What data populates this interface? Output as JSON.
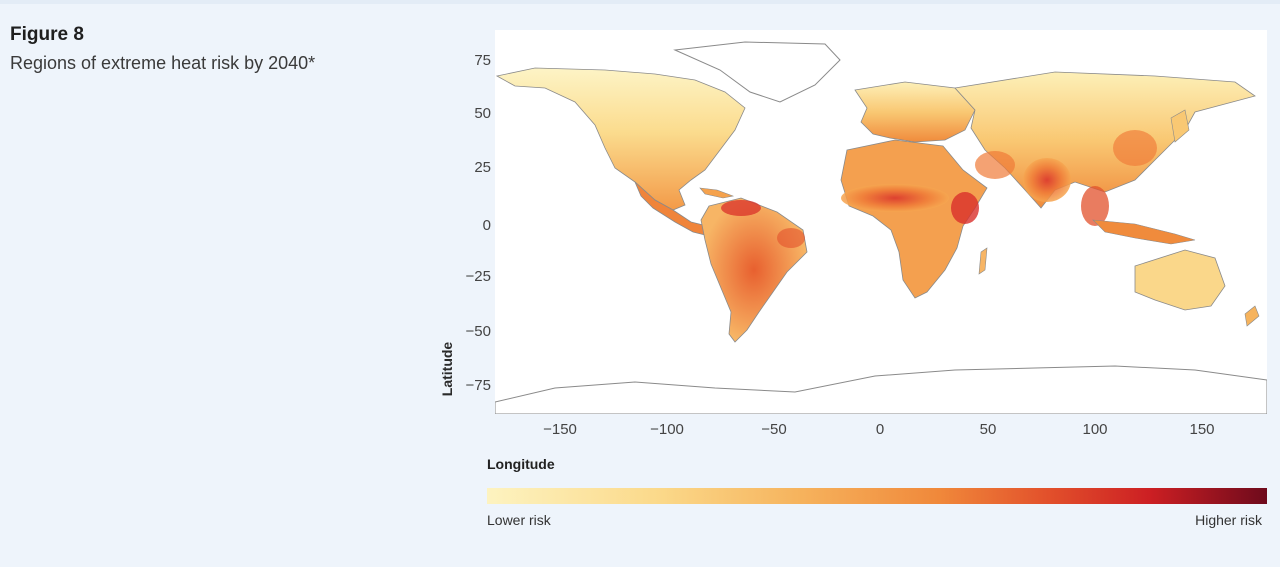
{
  "figure": {
    "label": "Figure 8",
    "subtitle": "Regions of extreme heat risk by 2040*"
  },
  "map": {
    "y_axis_label": "Latitude",
    "x_axis_label": "Longitude",
    "y_ticks": [
      "75",
      "50",
      "25",
      "0",
      "−25",
      "−50",
      "−75"
    ],
    "x_ticks": [
      "−150",
      "−100",
      "−50",
      "0",
      "50",
      "100",
      "150"
    ],
    "colors": {
      "low": "#fdf3c0",
      "mid": "#f0883a",
      "high": "#cc1f23",
      "max": "#6e0a1c",
      "border": "#8a8a8a"
    }
  },
  "legend": {
    "low_label": "Lower risk",
    "high_label": "Higher risk"
  }
}
